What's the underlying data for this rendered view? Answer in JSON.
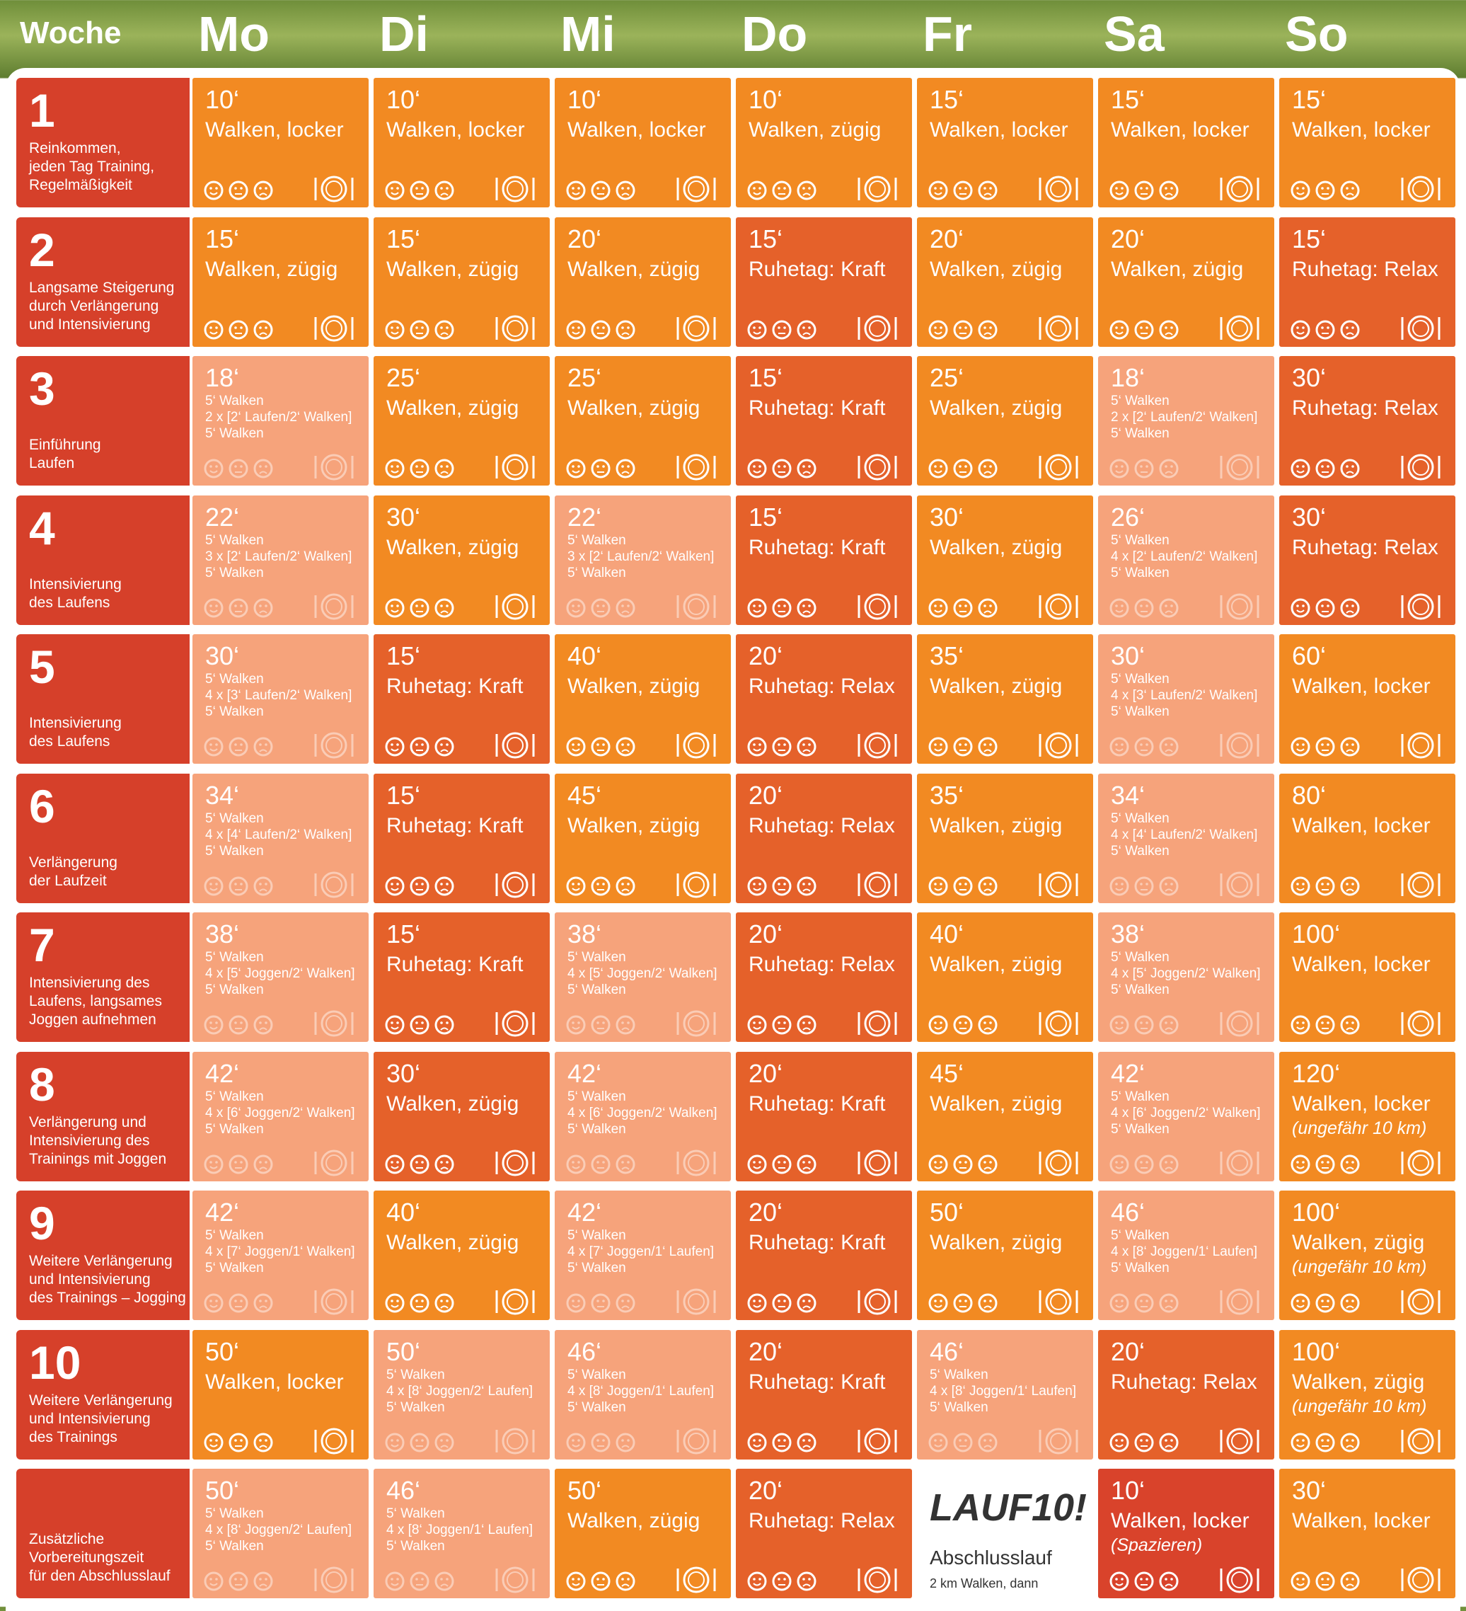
{
  "header": {
    "corner": "Woche",
    "days": [
      "Mo",
      "Di",
      "Mi",
      "Do",
      "Fr",
      "Sa",
      "So"
    ]
  },
  "table": {
    "rows": [
      {
        "week": "1",
        "description": [
          "Reinkommen,",
          "jeden Tag Training,",
          "Regelmäßigkeit"
        ],
        "cells": [
          {
            "time": "10‘",
            "activity": "Walken, locker",
            "color": "#f28a22"
          },
          {
            "time": "10‘",
            "activity": "Walken, locker",
            "color": "#f28a22"
          },
          {
            "time": "10‘",
            "activity": "Walken, locker",
            "color": "#f28a22"
          },
          {
            "time": "10‘",
            "activity": "Walken, zügig",
            "color": "#f28a22"
          },
          {
            "time": "15‘",
            "activity": "Walken, locker",
            "color": "#f28a22"
          },
          {
            "time": "15‘",
            "activity": "Walken, locker",
            "color": "#f28a22"
          },
          {
            "time": "15‘",
            "activity": "Walken, locker",
            "color": "#f28a22"
          }
        ]
      },
      {
        "week": "2",
        "description": [
          "Langsame Steigerung",
          "durch Verlängerung",
          "und Intensivierung"
        ],
        "cells": [
          {
            "time": "15‘",
            "activity": "Walken, zügig",
            "color": "#f28a22"
          },
          {
            "time": "15‘",
            "activity": "Walken, zügig",
            "color": "#f28a22"
          },
          {
            "time": "20‘",
            "activity": "Walken, zügig",
            "color": "#f28a22"
          },
          {
            "time": "15‘",
            "activity": "Ruhetag: Kraft",
            "color": "#e5612a"
          },
          {
            "time": "20‘",
            "activity": "Walken, zügig",
            "color": "#f28a22"
          },
          {
            "time": "20‘",
            "activity": "Walken, zügig",
            "color": "#f28a22"
          },
          {
            "time": "15‘",
            "activity": "Ruhetag: Relax",
            "color": "#e5612a"
          }
        ]
      },
      {
        "week": "3",
        "description": [
          "Einführung",
          "Laufen"
        ],
        "cells": [
          {
            "time": "18‘",
            "details": [
              "5‘ Walken",
              "2 x [2‘ Laufen/2‘ Walken]",
              "5‘ Walken"
            ],
            "color": "#f6a37b"
          },
          {
            "time": "25‘",
            "activity": "Walken, zügig",
            "color": "#f28a22"
          },
          {
            "time": "25‘",
            "activity": "Walken, zügig",
            "color": "#f28a22"
          },
          {
            "time": "15‘",
            "activity": "Ruhetag: Kraft",
            "color": "#e5612a"
          },
          {
            "time": "25‘",
            "activity": "Walken, zügig",
            "color": "#f28a22"
          },
          {
            "time": "18‘",
            "details": [
              "5‘ Walken",
              "2 x [2‘ Laufen/2‘ Walken]",
              "5‘ Walken"
            ],
            "color": "#f6a37b"
          },
          {
            "time": "30‘",
            "activity": "Ruhetag: Relax",
            "color": "#e5612a"
          }
        ]
      },
      {
        "week": "4",
        "description": [
          "Intensivierung",
          "des Laufens"
        ],
        "cells": [
          {
            "time": "22‘",
            "details": [
              "5‘ Walken",
              "3 x [2‘ Laufen/2‘ Walken]",
              "5‘ Walken"
            ],
            "color": "#f6a37b"
          },
          {
            "time": "30‘",
            "activity": "Walken, zügig",
            "color": "#f28a22"
          },
          {
            "time": "22‘",
            "details": [
              "5‘ Walken",
              "3 x [2‘ Laufen/2‘ Walken]",
              "5‘ Walken"
            ],
            "color": "#f6a37b"
          },
          {
            "time": "15‘",
            "activity": "Ruhetag: Kraft",
            "color": "#e5612a"
          },
          {
            "time": "30‘",
            "activity": "Walken, zügig",
            "color": "#f28a22"
          },
          {
            "time": "26‘",
            "details": [
              "5‘ Walken",
              "4 x [2‘ Laufen/2‘ Walken]",
              "5‘ Walken"
            ],
            "color": "#f6a37b"
          },
          {
            "time": "30‘",
            "activity": "Ruhetag: Relax",
            "color": "#e5612a"
          }
        ]
      },
      {
        "week": "5",
        "description": [
          "Intensivierung",
          "des Laufens"
        ],
        "cells": [
          {
            "time": "30‘",
            "details": [
              "5‘ Walken",
              "4 x [3‘ Laufen/2‘ Walken]",
              "5‘ Walken"
            ],
            "color": "#f6a37b"
          },
          {
            "time": "15‘",
            "activity": "Ruhetag: Kraft",
            "color": "#e5612a"
          },
          {
            "time": "40‘",
            "activity": "Walken, zügig",
            "color": "#f28a22"
          },
          {
            "time": "20‘",
            "activity": "Ruhetag: Relax",
            "color": "#e5612a"
          },
          {
            "time": "35‘",
            "activity": "Walken, zügig",
            "color": "#f28a22"
          },
          {
            "time": "30‘",
            "details": [
              "5‘ Walken",
              "4 x [3‘ Laufen/2‘ Walken]",
              "5‘ Walken"
            ],
            "color": "#f6a37b"
          },
          {
            "time": "60‘",
            "activity": "Walken, locker",
            "color": "#f28a22"
          }
        ]
      },
      {
        "week": "6",
        "description": [
          "Verlängerung",
          "der Laufzeit"
        ],
        "cells": [
          {
            "time": "34‘",
            "details": [
              "5‘ Walken",
              "4 x [4‘ Laufen/2‘ Walken]",
              "5‘ Walken"
            ],
            "color": "#f6a37b"
          },
          {
            "time": "15‘",
            "activity": "Ruhetag: Kraft",
            "color": "#e5612a"
          },
          {
            "time": "45‘",
            "activity": "Walken, zügig",
            "color": "#f28a22"
          },
          {
            "time": "20‘",
            "activity": "Ruhetag: Relax",
            "color": "#e5612a"
          },
          {
            "time": "35‘",
            "activity": "Walken, zügig",
            "color": "#f28a22"
          },
          {
            "time": "34‘",
            "details": [
              "5‘ Walken",
              "4 x [4‘ Laufen/2‘ Walken]",
              "5‘ Walken"
            ],
            "color": "#f6a37b"
          },
          {
            "time": "80‘",
            "activity": "Walken, locker",
            "color": "#f28a22"
          }
        ]
      },
      {
        "week": "7",
        "description": [
          "Intensivierung des",
          "Laufens, langsames",
          "Joggen aufnehmen"
        ],
        "cells": [
          {
            "time": "38‘",
            "details": [
              "5‘ Walken",
              "4 x [5‘ Joggen/2‘ Walken]",
              "5‘ Walken"
            ],
            "color": "#f6a37b"
          },
          {
            "time": "15‘",
            "activity": "Ruhetag: Kraft",
            "color": "#e5612a"
          },
          {
            "time": "38‘",
            "details": [
              "5‘ Walken",
              "4 x [5‘ Joggen/2‘ Walken]",
              "5‘ Walken"
            ],
            "color": "#f6a37b"
          },
          {
            "time": "20‘",
            "activity": "Ruhetag: Relax",
            "color": "#e5612a"
          },
          {
            "time": "40‘",
            "activity": "Walken, zügig",
            "color": "#f28a22"
          },
          {
            "time": "38‘",
            "details": [
              "5‘ Walken",
              "4 x [5‘ Joggen/2‘ Walken]",
              "5‘ Walken"
            ],
            "color": "#f6a37b"
          },
          {
            "time": "100‘",
            "activity": "Walken, locker",
            "color": "#f28a22"
          }
        ]
      },
      {
        "week": "8",
        "description": [
          "Verlängerung und",
          "Intensivierung des",
          "Trainings mit Joggen"
        ],
        "cells": [
          {
            "time": "42‘",
            "details": [
              "5‘ Walken",
              "4 x [6‘ Joggen/2‘ Walken]",
              "5‘ Walken"
            ],
            "color": "#f6a37b"
          },
          {
            "time": "30‘",
            "activity": "Walken, zügig",
            "color": "#e5612a"
          },
          {
            "time": "42‘",
            "details": [
              "5‘ Walken",
              "4 x [6‘ Joggen/2‘ Walken]",
              "5‘ Walken"
            ],
            "color": "#f6a37b"
          },
          {
            "time": "20‘",
            "activity": "Ruhetag: Kraft",
            "color": "#e5612a"
          },
          {
            "time": "45‘",
            "activity": "Walken, zügig",
            "color": "#f28a22"
          },
          {
            "time": "42‘",
            "details": [
              "5‘ Walken",
              "4 x [6‘ Joggen/2‘ Walken]",
              "5‘ Walken"
            ],
            "color": "#f6a37b"
          },
          {
            "time": "120‘",
            "activity": "Walken, locker",
            "note": "(ungefähr 10 km)",
            "color": "#f28a22"
          }
        ]
      },
      {
        "week": "9",
        "description": [
          "Weitere Verlängerung",
          "und Intensivierung",
          "des Trainings – Jogging"
        ],
        "cells": [
          {
            "time": "42‘",
            "details": [
              "5‘ Walken",
              "4 x [7‘ Joggen/1‘ Walken]",
              "5‘ Walken"
            ],
            "color": "#f6a37b"
          },
          {
            "time": "40‘",
            "activity": "Walken, zügig",
            "color": "#f28a22"
          },
          {
            "time": "42‘",
            "details": [
              "5‘ Walken",
              "4 x [7‘ Joggen/1‘ Laufen]",
              "5‘ Walken"
            ],
            "color": "#f6a37b"
          },
          {
            "time": "20‘",
            "activity": "Ruhetag: Kraft",
            "color": "#e5612a"
          },
          {
            "time": "50‘",
            "activity": "Walken, zügig",
            "color": "#f28a22"
          },
          {
            "time": "46‘",
            "details": [
              "5‘ Walken",
              "4 x [8‘ Joggen/1‘ Laufen]",
              "5‘ Walken"
            ],
            "color": "#f6a37b"
          },
          {
            "time": "100‘",
            "activity": "Walken, zügig",
            "note": "(ungefähr 10 km)",
            "color": "#f28a22"
          }
        ]
      },
      {
        "week": "10",
        "description": [
          "Weitere Verlängerung",
          "und Intensivierung",
          "des Trainings"
        ],
        "cells": [
          {
            "time": "50‘",
            "activity": "Walken, locker",
            "color": "#f28a22"
          },
          {
            "time": "50‘",
            "details": [
              "5‘ Walken",
              "4 x [8‘ Joggen/2‘ Laufen]",
              "5‘ Walken"
            ],
            "color": "#f6a37b"
          },
          {
            "time": "46‘",
            "details": [
              "5‘ Walken",
              "4 x [8‘ Joggen/1‘ Laufen]",
              "5‘ Walken"
            ],
            "color": "#f6a37b"
          },
          {
            "time": "20‘",
            "activity": "Ruhetag: Kraft",
            "color": "#e5612a"
          },
          {
            "time": "46‘",
            "details": [
              "5‘ Walken",
              "4 x [8‘ Joggen/1‘ Laufen]",
              "5‘ Walken"
            ],
            "color": "#f6a37b"
          },
          {
            "time": "20‘",
            "activity": "Ruhetag: Relax",
            "color": "#e5612a"
          },
          {
            "time": "100‘",
            "activity": "Walken, zügig",
            "note": "(ungefähr 10 km)",
            "color": "#f28a22"
          }
        ]
      },
      {
        "description": [
          "Zusätzliche",
          "Vorbereitungszeit",
          "für den Abschlusslauf"
        ],
        "cells": [
          {
            "time": "50‘",
            "details": [
              "5‘ Walken",
              "4 x [8‘ Joggen/2‘ Laufen]",
              "5‘ Walken"
            ],
            "color": "#f6a37b"
          },
          {
            "time": "46‘",
            "details": [
              "5‘ Walken",
              "4 x [8‘ Joggen/1‘ Laufen]",
              "5‘ Walken"
            ],
            "color": "#f6a37b"
          },
          {
            "time": "50‘",
            "activity": "Walken, zügig",
            "color": "#f28a22"
          },
          {
            "time": "20‘",
            "activity": "Ruhetag: Relax",
            "color": "#e5612a"
          },
          {
            "logo": "LAUF10!",
            "title": "Abschlusslauf",
            "note": "2 km Walken, dann",
            "color": "#ffffff"
          },
          {
            "time": "10‘",
            "activity": "Walken, locker",
            "note": "(Spazieren)",
            "color": "#d9432b"
          },
          {
            "time": "30‘",
            "activity": "Walken, locker",
            "color": "#f28a22"
          }
        ]
      }
    ]
  }
}
